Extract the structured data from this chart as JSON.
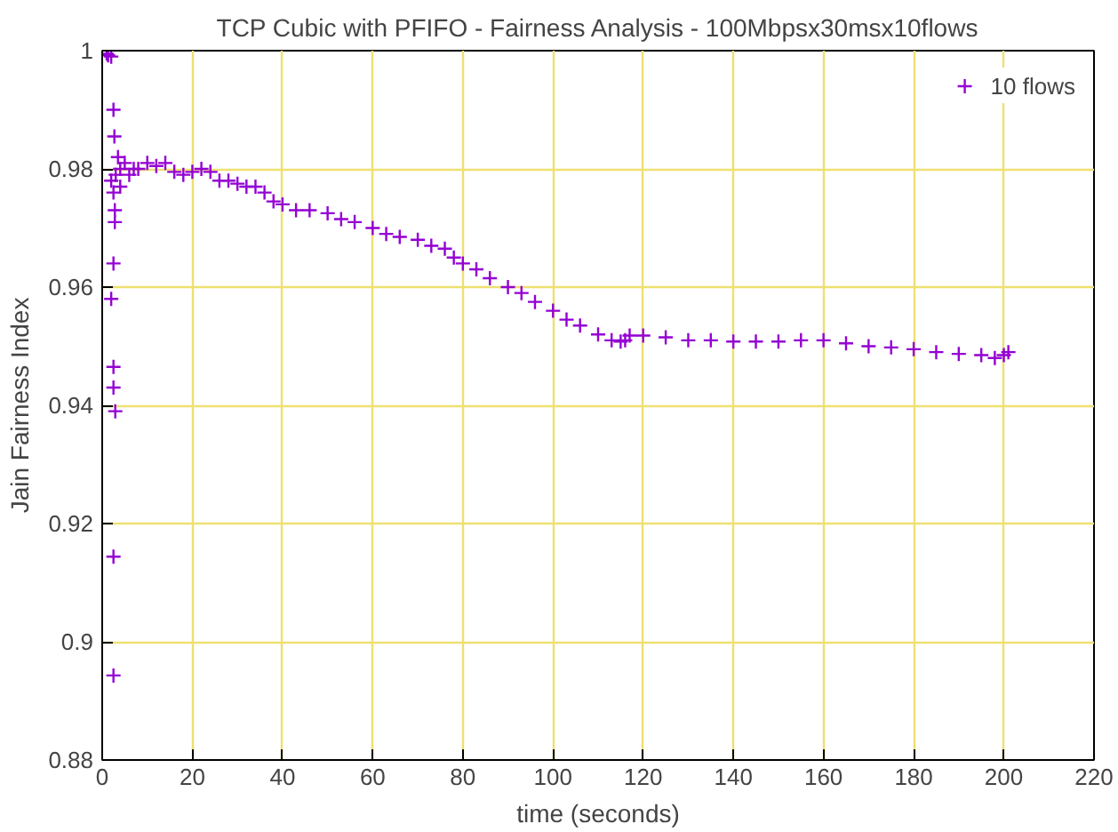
{
  "chart_data": {
    "type": "scatter",
    "title": "TCP Cubic with PFIFO - Fairness Analysis - 100Mbpsx30msx10flows",
    "xlabel": "time (seconds)",
    "ylabel": "Jain Fairness Index",
    "xlim": [
      0,
      220
    ],
    "ylim": [
      0.88,
      1
    ],
    "xticks": [
      0,
      20,
      40,
      60,
      80,
      100,
      120,
      140,
      160,
      180,
      200,
      220
    ],
    "yticks": [
      0.88,
      0.9,
      0.92,
      0.94,
      0.96,
      0.98,
      1
    ],
    "grid": true,
    "legend": "top right",
    "marker": "cross",
    "series": [
      {
        "name": "10 flows",
        "color": "#9400d3",
        "x": [
          1.0,
          1.3,
          2.0,
          2.5,
          2.7,
          2.0,
          2.5,
          2.8,
          2.8,
          2.5,
          2.0,
          2.5,
          2.5,
          2.9,
          2.5,
          2.5,
          3.5,
          4.0,
          3,
          4,
          5,
          6,
          7,
          8,
          10,
          12,
          14,
          16,
          18,
          20,
          22,
          24,
          26,
          28,
          30,
          32,
          34,
          36,
          38,
          40,
          43,
          46,
          50,
          53,
          56,
          60,
          63,
          66,
          70,
          73,
          76,
          78,
          80,
          83,
          86,
          90,
          93,
          96,
          100,
          103,
          106,
          110,
          113,
          115,
          116,
          117,
          120,
          125,
          130,
          135,
          140,
          145,
          150,
          155,
          160,
          165,
          170,
          175,
          180,
          185,
          190,
          195,
          198,
          200,
          201
        ],
        "values": [
          0.9995,
          0.9992,
          0.999,
          0.99,
          0.9855,
          0.978,
          0.976,
          0.973,
          0.971,
          0.964,
          0.958,
          0.9465,
          0.943,
          0.939,
          0.9144,
          0.8943,
          0.982,
          0.977,
          0.979,
          0.98,
          0.981,
          0.979,
          0.98,
          0.98,
          0.981,
          0.9805,
          0.981,
          0.9795,
          0.979,
          0.9795,
          0.98,
          0.9795,
          0.978,
          0.978,
          0.9775,
          0.977,
          0.977,
          0.976,
          0.9745,
          0.974,
          0.973,
          0.973,
          0.9725,
          0.9715,
          0.971,
          0.97,
          0.969,
          0.9685,
          0.968,
          0.967,
          0.9665,
          0.965,
          0.964,
          0.963,
          0.9615,
          0.96,
          0.959,
          0.9575,
          0.956,
          0.9545,
          0.9535,
          0.952,
          0.951,
          0.9508,
          0.951,
          0.9518,
          0.9518,
          0.9515,
          0.951,
          0.951,
          0.9508,
          0.9508,
          0.9508,
          0.951,
          0.951,
          0.9505,
          0.95,
          0.9498,
          0.9495,
          0.949,
          0.9487,
          0.9485,
          0.948,
          0.9485,
          0.949
        ]
      }
    ]
  }
}
